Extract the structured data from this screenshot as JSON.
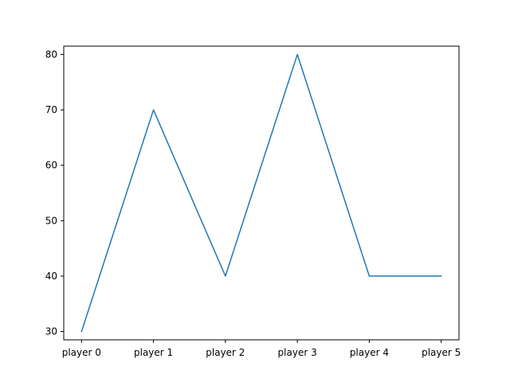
{
  "chart_data": {
    "type": "line",
    "categories": [
      "player 0",
      "player 1",
      "player 2",
      "player 3",
      "player 4",
      "player 5"
    ],
    "series": [
      {
        "values": [
          30,
          70,
          40,
          80,
          40,
          40
        ]
      }
    ],
    "yticks": [
      30,
      40,
      50,
      60,
      70,
      80
    ],
    "ylim": [
      28.5,
      81.5
    ],
    "title": "",
    "xlabel": "",
    "ylabel": "",
    "grid": false,
    "line_color": "#1f77b4",
    "axis_color": "#000000"
  }
}
